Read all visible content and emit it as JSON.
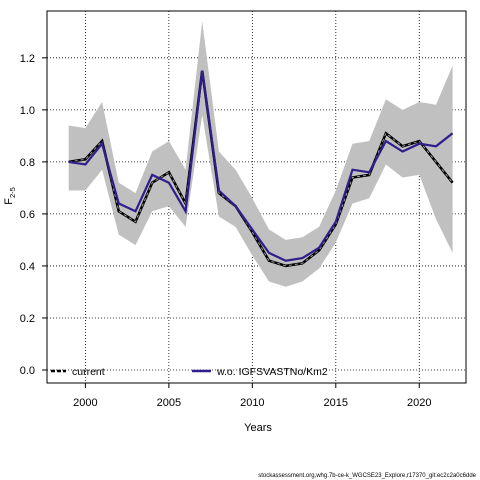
{
  "chart_data": {
    "type": "line",
    "xlabel": "Years",
    "ylabel": "F",
    "ylabel_sub": "2-5",
    "xlim": [
      1997.7,
      2022.8
    ],
    "ylim": [
      -0.05,
      1.38
    ],
    "xticks": [
      2000,
      2005,
      2010,
      2015,
      2020
    ],
    "yticks": [
      0.0,
      0.2,
      0.4,
      0.6,
      0.8,
      1.0,
      1.2
    ],
    "ytick_labels": [
      "0.0",
      "0.2",
      "0.4",
      "0.6",
      "0.8",
      "1.0",
      "1.2"
    ],
    "grid": true,
    "legend_placement": "bottom",
    "x": [
      1999,
      2000,
      2001,
      2002,
      2003,
      2004,
      2005,
      2006,
      2007,
      2008,
      2009,
      2010,
      2011,
      2012,
      2013,
      2014,
      2015,
      2016,
      2017,
      2018,
      2019,
      2020,
      2021,
      2022
    ],
    "band": {
      "upper": [
        0.94,
        0.93,
        1.03,
        0.72,
        0.68,
        0.84,
        0.88,
        0.77,
        1.34,
        0.84,
        0.77,
        0.66,
        0.54,
        0.5,
        0.51,
        0.55,
        0.69,
        0.87,
        0.88,
        1.04,
        1.0,
        1.03,
        1.02,
        1.17
      ],
      "lower": [
        0.69,
        0.69,
        0.77,
        0.52,
        0.48,
        0.61,
        0.63,
        0.55,
        0.98,
        0.59,
        0.55,
        0.44,
        0.34,
        0.32,
        0.34,
        0.39,
        0.49,
        0.64,
        0.66,
        0.79,
        0.74,
        0.75,
        0.58,
        0.45
      ]
    },
    "series": [
      {
        "name": "current",
        "color": "#000000",
        "style": "dashed",
        "values": [
          0.8,
          0.81,
          0.88,
          0.61,
          0.57,
          0.72,
          0.76,
          0.64,
          1.15,
          0.68,
          0.63,
          0.53,
          0.42,
          0.4,
          0.41,
          0.46,
          0.56,
          0.74,
          0.75,
          0.91,
          0.86,
          0.88,
          0.8,
          0.72
        ]
      },
      {
        "name": "w.o. IGFSVASTNo/Km2",
        "color": "#2e1f8c",
        "style": "solid",
        "values": [
          0.8,
          0.79,
          0.87,
          0.64,
          0.61,
          0.75,
          0.72,
          0.61,
          1.15,
          0.69,
          0.63,
          0.54,
          0.45,
          0.42,
          0.43,
          0.47,
          0.57,
          0.77,
          0.76,
          0.88,
          0.84,
          0.87,
          0.86,
          0.91
        ]
      }
    ],
    "colors": {
      "band": "#c0c0c0",
      "grid": "#000000"
    }
  },
  "footer": "stockassessment.org,whg.7b-ce-k_WGCSE23_Explore,r17370_git:ec2c2a0c6dde"
}
